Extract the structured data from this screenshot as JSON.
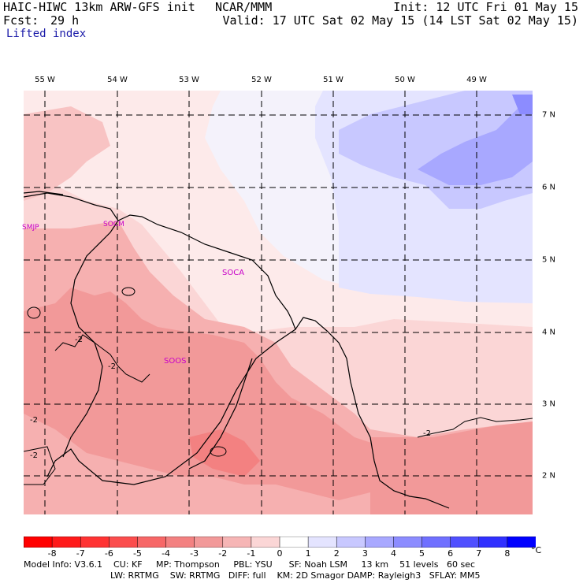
{
  "header": {
    "model": "HAIC-HIWC 13km ARW-GFS init",
    "org": "NCAR/MMM",
    "init": "Init: 12 UTC Fri 01 May 15",
    "fcst_label": "Fcst:",
    "fcst_value": "29 h",
    "valid": "Valid: 17 UTC Sat 02 May 15 (14 LST Sat 02 May 15)",
    "field": "Lifted index"
  },
  "map": {
    "lon_labels": [
      "55 W",
      "54 W",
      "53 W",
      "52 W",
      "51 W",
      "50 W",
      "49 W"
    ],
    "lat_labels": [
      "7 N",
      "6 N",
      "5 N",
      "4 N",
      "3 N",
      "2 N"
    ],
    "stations": [
      "SMJP",
      "SOCM",
      "SOCA",
      "SOOS"
    ],
    "contour_labels": [
      "-2",
      "-2",
      "-2",
      "-2",
      "-2"
    ]
  },
  "colorbar": {
    "labels": [
      "-8",
      "-7",
      "-6",
      "-5",
      "-4",
      "-3",
      "-2",
      "-1",
      "0",
      "1",
      "2",
      "3",
      "4",
      "5",
      "6",
      "7",
      "8"
    ],
    "unit": "°C",
    "colors": [
      "#ff1a1a",
      "#ff3333",
      "#fb4d4d",
      "#f76767",
      "#f38181",
      "#f29999",
      "#f6b5b5",
      "#fbd6d6",
      "#ffffff",
      "#e4e4ff",
      "#c8c8ff",
      "#a8a8ff",
      "#8c8cff",
      "#7070ff",
      "#5050ff",
      "#3030ff",
      "#1010ff"
    ]
  },
  "footer": {
    "line1": "Model Info: V3.6.1    CU: KF     MP: Thompson     PBL: YSU      SF: Noah LSM     13 km    51 levels   60 sec",
    "line2": "LW: RRTMG    SW: RRTMG   DIFF: full    KM: 2D Smagor DAMP: Rayleigh3   SFLAY: MM5"
  }
}
